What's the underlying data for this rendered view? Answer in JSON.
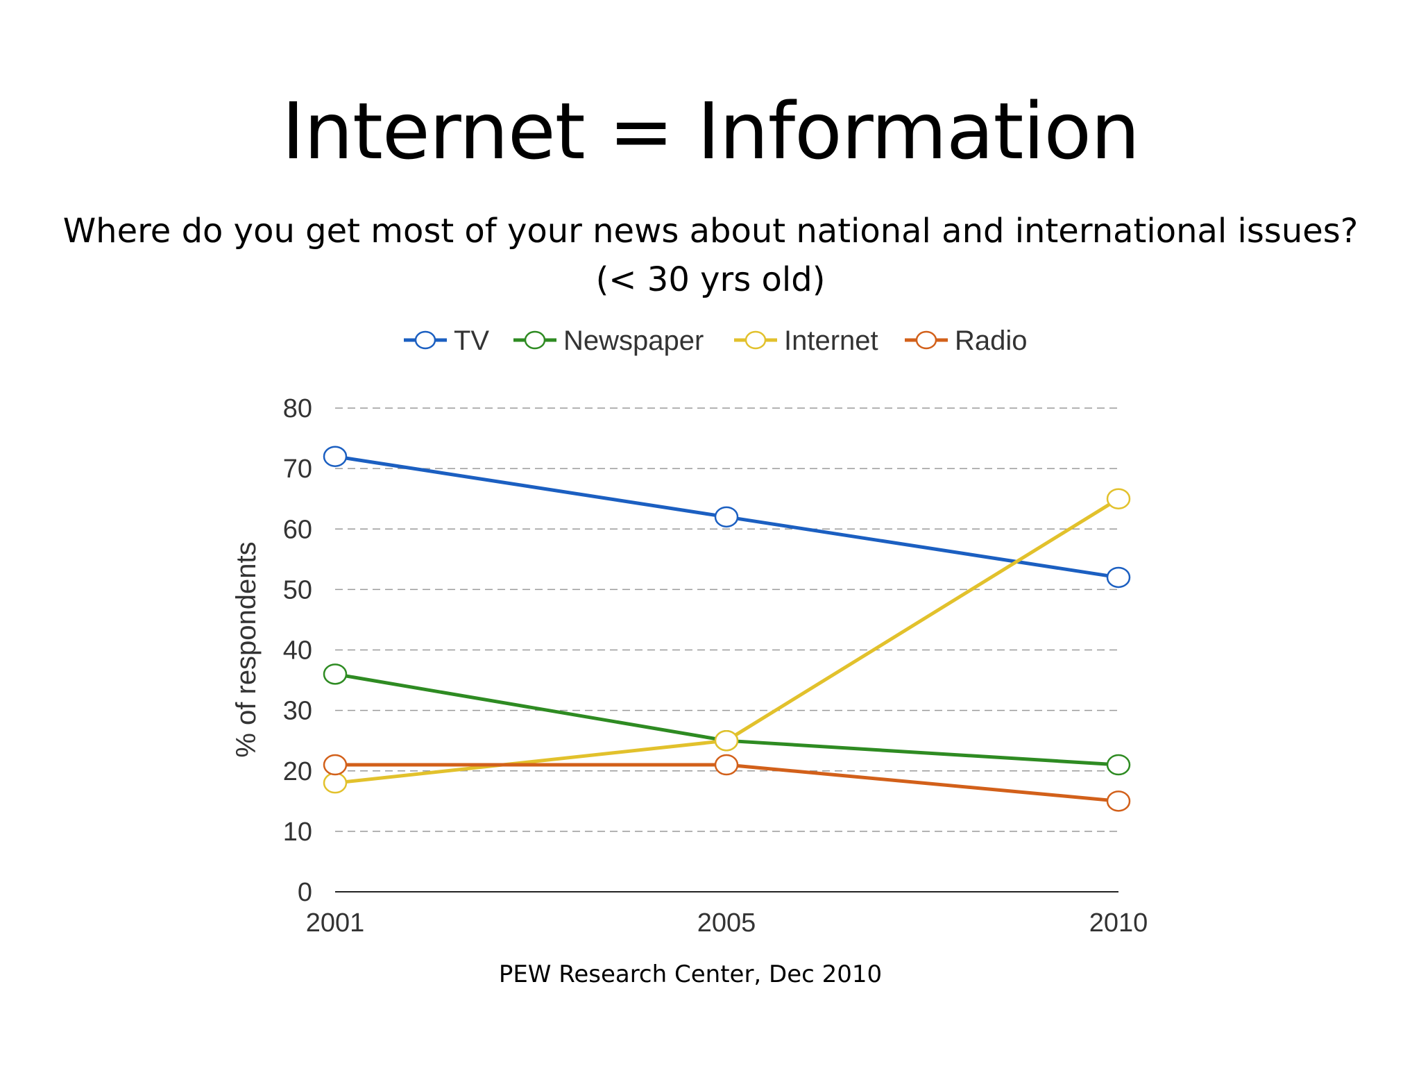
{
  "slide": {
    "title": "Internet = Information",
    "question_line1": "Where do you get most of your news about national and international issues?",
    "question_line2": "(< 30 yrs old)",
    "source": "PEW Research Center, Dec 2010"
  },
  "chart_data": {
    "type": "line",
    "x": [
      "2001",
      "2005",
      "2010"
    ],
    "ylabel": "% of respondents",
    "xlabel": "",
    "ylim": [
      0,
      80
    ],
    "yticks": [
      0,
      10,
      20,
      30,
      40,
      50,
      60,
      70,
      80
    ],
    "grid": "horizontal-dashed",
    "legend_position": "top",
    "series": [
      {
        "name": "TV",
        "color": "#1b5fc1",
        "values": [
          72,
          62,
          52
        ]
      },
      {
        "name": "Newspaper",
        "color": "#2e8b22",
        "values": [
          36,
          25,
          21
        ]
      },
      {
        "name": "Internet",
        "color": "#e2c12c",
        "values": [
          18,
          25,
          65
        ]
      },
      {
        "name": "Radio",
        "color": "#d2601a",
        "values": [
          21,
          21,
          15
        ]
      }
    ]
  }
}
